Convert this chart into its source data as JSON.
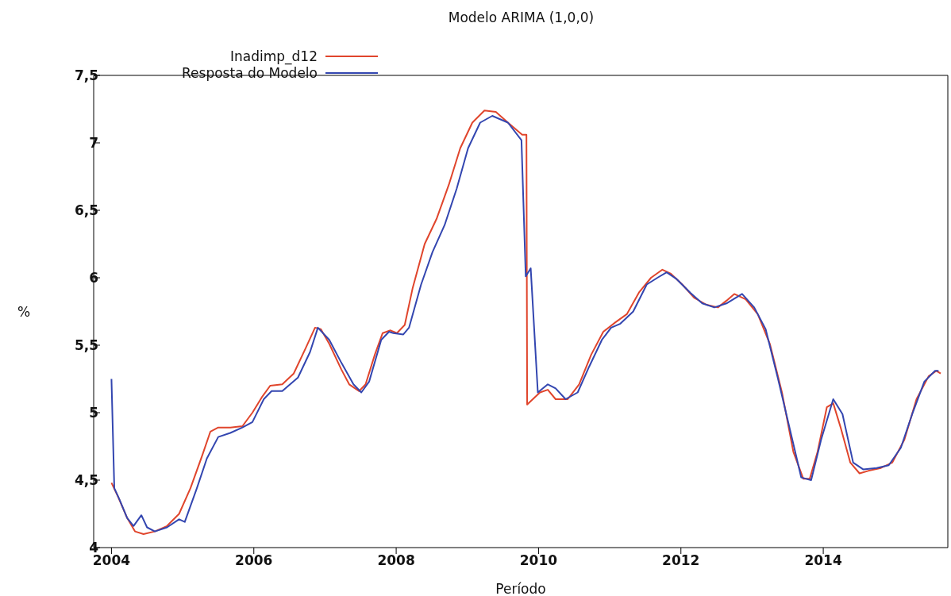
{
  "chart_data": {
    "type": "line",
    "title": "Modelo ARIMA (1,0,0)",
    "xlabel": "Período",
    "ylabel": "%",
    "xlim": [
      2003.75,
      2015.75
    ],
    "xticks": [
      2004,
      2006,
      2008,
      2010,
      2012,
      2014
    ],
    "ylim": [
      4,
      7.5
    ],
    "yticks": [
      4,
      {
        "value": 4.5,
        "label": "4,5"
      },
      5,
      {
        "value": 5.5,
        "label": "5,5"
      },
      6,
      {
        "value": 6.5,
        "label": "6,5"
      },
      7,
      {
        "value": 7.5,
        "label": "7,5"
      }
    ],
    "legend": "top left",
    "series": [
      {
        "name": "Inadimp_d12",
        "color": "#e0452c",
        "x": [
          2004.0,
          2004.09,
          2004.22,
          2004.33,
          2004.45,
          2004.61,
          2004.78,
          2004.95,
          2005.11,
          2005.28,
          2005.39,
          2005.5,
          2005.67,
          2005.84,
          2005.98,
          2006.12,
          2006.23,
          2006.4,
          2006.56,
          2006.73,
          2006.86,
          2006.94,
          2007.06,
          2007.23,
          2007.34,
          2007.48,
          2007.57,
          2007.7,
          2007.81,
          2007.92,
          2008.01,
          2008.12,
          2008.23,
          2008.4,
          2008.57,
          2008.74,
          2008.9,
          2009.07,
          2009.24,
          2009.4,
          2009.57,
          2009.77,
          2009.83,
          2009.84,
          2010.02,
          2010.13,
          2010.24,
          2010.41,
          2010.57,
          2010.74,
          2010.91,
          2011.08,
          2011.24,
          2011.41,
          2011.58,
          2011.74,
          2011.86,
          2012.02,
          2012.19,
          2012.36,
          2012.52,
          2012.64,
          2012.75,
          2012.91,
          2013.08,
          2013.25,
          2013.42,
          2013.58,
          2013.72,
          2013.81,
          2013.92,
          2014.05,
          2014.14,
          2014.25,
          2014.38,
          2014.51,
          2014.64,
          2014.81,
          2014.97,
          2015.14,
          2015.31,
          2015.48,
          2015.59,
          2015.65
        ],
        "values": [
          4.48,
          4.38,
          4.22,
          4.12,
          4.1,
          4.12,
          4.16,
          4.25,
          4.44,
          4.69,
          4.86,
          4.89,
          4.89,
          4.9,
          5.0,
          5.12,
          5.2,
          5.21,
          5.29,
          5.48,
          5.63,
          5.62,
          5.51,
          5.32,
          5.21,
          5.16,
          5.21,
          5.43,
          5.59,
          5.61,
          5.59,
          5.65,
          5.92,
          6.25,
          6.44,
          6.69,
          6.96,
          7.15,
          7.24,
          7.23,
          7.15,
          7.06,
          7.06,
          5.06,
          5.15,
          5.17,
          5.1,
          5.1,
          5.21,
          5.43,
          5.6,
          5.67,
          5.73,
          5.89,
          6.0,
          6.06,
          6.03,
          5.95,
          5.85,
          5.8,
          5.78,
          5.83,
          5.88,
          5.84,
          5.73,
          5.51,
          5.15,
          4.71,
          4.51,
          4.51,
          4.71,
          5.04,
          5.07,
          4.88,
          4.63,
          4.55,
          4.57,
          4.59,
          4.63,
          4.8,
          5.1,
          5.27,
          5.31,
          5.29
        ]
      },
      {
        "name": "Resposta do Modelo",
        "color": "#3346b0",
        "x": [
          2004.0,
          2004.04,
          2004.11,
          2004.22,
          2004.31,
          2004.42,
          2004.5,
          2004.61,
          2004.78,
          2004.95,
          2005.03,
          2005.2,
          2005.34,
          2005.5,
          2005.67,
          2005.84,
          2005.98,
          2006.14,
          2006.25,
          2006.4,
          2006.62,
          2006.79,
          2006.9,
          2007.06,
          2007.23,
          2007.4,
          2007.51,
          2007.62,
          2007.79,
          2007.9,
          2007.96,
          2008.1,
          2008.18,
          2008.35,
          2008.51,
          2008.68,
          2008.85,
          2009.01,
          2009.18,
          2009.35,
          2009.57,
          2009.76,
          2009.82,
          2009.89,
          2009.99,
          2010.13,
          2010.24,
          2010.38,
          2010.55,
          2010.71,
          2010.89,
          2011.02,
          2011.15,
          2011.33,
          2011.52,
          2011.67,
          2011.8,
          2011.94,
          2012.13,
          2012.3,
          2012.47,
          2012.64,
          2012.86,
          2013.03,
          2013.19,
          2013.36,
          2013.53,
          2013.69,
          2013.83,
          2013.97,
          2014.14,
          2014.27,
          2014.42,
          2014.56,
          2014.75,
          2014.92,
          2015.09,
          2015.25,
          2015.42,
          2015.57,
          2015.62
        ],
        "values": [
          5.25,
          4.44,
          4.36,
          4.22,
          4.16,
          4.24,
          4.15,
          4.12,
          4.15,
          4.21,
          4.19,
          4.44,
          4.66,
          4.82,
          4.85,
          4.89,
          4.93,
          5.1,
          5.16,
          5.16,
          5.26,
          5.45,
          5.63,
          5.54,
          5.37,
          5.21,
          5.15,
          5.23,
          5.54,
          5.6,
          5.59,
          5.58,
          5.63,
          5.95,
          6.19,
          6.39,
          6.66,
          6.96,
          7.15,
          7.2,
          7.15,
          7.02,
          6.01,
          6.07,
          5.15,
          5.21,
          5.18,
          5.1,
          5.15,
          5.34,
          5.54,
          5.63,
          5.66,
          5.75,
          5.95,
          6.0,
          6.04,
          5.99,
          5.89,
          5.81,
          5.78,
          5.81,
          5.88,
          5.78,
          5.62,
          5.26,
          4.88,
          4.52,
          4.5,
          4.8,
          5.1,
          4.99,
          4.63,
          4.58,
          4.59,
          4.61,
          4.74,
          4.99,
          5.23,
          5.31,
          5.31
        ]
      }
    ]
  }
}
